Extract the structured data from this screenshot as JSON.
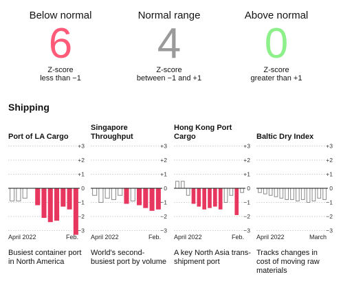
{
  "summary": [
    {
      "title": "Below normal",
      "count": "6",
      "desc1": "Z-score",
      "desc2": "less than −1",
      "color": "#ff5a78"
    },
    {
      "title": "Normal range",
      "count": "4",
      "desc1": "Z-score",
      "desc2": "between −1 and +1",
      "color": "#9a9a9a"
    },
    {
      "title": "Above normal",
      "count": "0",
      "desc1": "Z-score",
      "desc2": "greater than +1",
      "color": "#8ef08a"
    }
  ],
  "section_title": "Shipping",
  "colors": {
    "below": "#e8375f",
    "normal_fill": "#ffffff",
    "normal_stroke": "#888888",
    "grid": "#bbbbbb",
    "zero": "#111111"
  },
  "chart_data": [
    {
      "type": "bar",
      "title": "Port of LA Cargo",
      "description": "Busiest container port in North America",
      "x_start_label": "April 2022",
      "x_end_label": "Feb.",
      "ylim": [
        -3,
        3
      ],
      "yticks": [
        "+3",
        "+2",
        "+1",
        "0",
        "−1",
        "−2",
        "−3"
      ],
      "values": [
        -0.9,
        -0.9,
        -0.7,
        0,
        -1.2,
        -2.1,
        -2.4,
        -2.3,
        -1.3,
        -1.5,
        -3.3
      ]
    },
    {
      "type": "bar",
      "title": "Singapore Throughput",
      "description": "World's second-busiest port by volume",
      "x_start_label": "April 2022",
      "x_end_label": "Feb.",
      "ylim": [
        -3,
        3
      ],
      "yticks": [
        "+3",
        "+2",
        "+1",
        "0",
        "−1",
        "−2",
        "−3"
      ],
      "values": [
        -0.5,
        -1.0,
        -0.7,
        -0.8,
        -0.5,
        -1.1,
        -0.9,
        -1.2,
        -1.4,
        -1.6,
        -1.5
      ]
    },
    {
      "type": "bar",
      "title": "Hong Kong Port Cargo",
      "description": "A key North Asia trans-shipment port",
      "x_start_label": "April 2022",
      "x_end_label": "Feb.",
      "ylim": [
        -3,
        3
      ],
      "yticks": [
        "+3",
        "+2",
        "+1",
        "0",
        "−1",
        "−2",
        "−3"
      ],
      "values": [
        0.5,
        0.5,
        -0.5,
        -1.1,
        -1.3,
        -1.5,
        -1.4,
        -1.3,
        -1.5,
        -1.0,
        -0.5,
        -1.9,
        -0.3
      ]
    },
    {
      "type": "bar",
      "title": "Baltic Dry Index",
      "description": "Tracks changes in cost of moving raw materials",
      "x_start_label": "April 2022",
      "x_end_label": "March",
      "ylim": [
        -3,
        3
      ],
      "yticks": [
        "+3",
        "+2",
        "+1",
        "0",
        "−1",
        "−2",
        "−3"
      ],
      "values": [
        -0.3,
        -0.4,
        -0.5,
        -0.6,
        -0.7,
        -0.8,
        -0.8,
        -0.9,
        -0.8,
        -1.0,
        -0.9,
        -0.7,
        -0.8
      ]
    }
  ]
}
